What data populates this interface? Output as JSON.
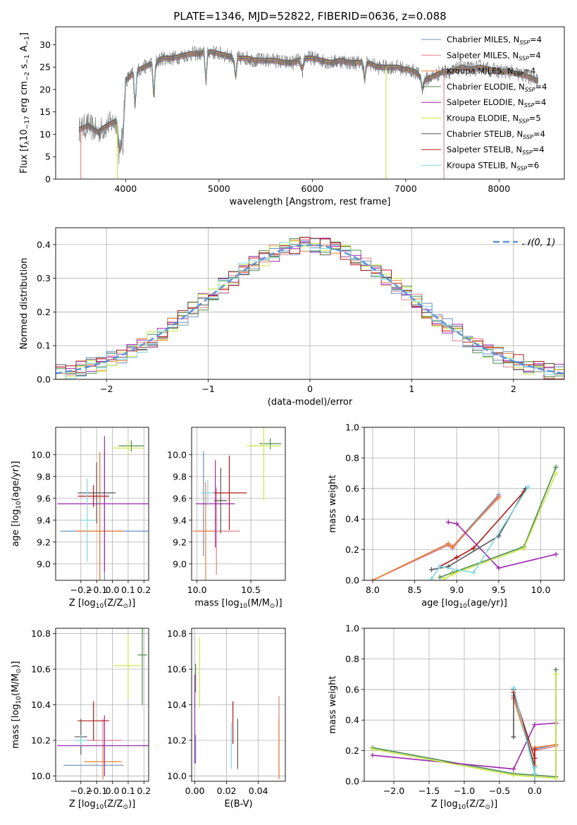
{
  "figure_title": "PLATE=1346, MJD=52822, FIBERID=0636, z=0.088",
  "colors": {
    "chabrier_miles": "#6c8ebf",
    "salpeter_miles": "#e07b8b",
    "kroupa_miles": "#e8833a",
    "chabrier_elodie": "#4e8a4e",
    "salpeter_elodie": "#9c27b0",
    "kroupa_elodie": "#c8e645",
    "chabrier_stelib": "#555555",
    "salpeter_stelib": "#b01818",
    "kroupa_stelib": "#7fd8e0",
    "data": "#707070",
    "normal": "#5b8fd6"
  },
  "legend_names": [
    "Chabrier MILES, N",
    "Salpeter MILES, N",
    "Kroupa MILES, N",
    "Chabrier ELODIE, N",
    "Salpeter ELODIE, N",
    "Kroupa ELODIE, N",
    "Chabrier STELIB, N",
    "Salpeter STELIB, N",
    "Kroupa STELIB, N"
  ],
  "legend_sub": "SSP",
  "legend_nssp": [
    "=4",
    "=4",
    "=4",
    "=4",
    "=4",
    "=5",
    "=4",
    "=4",
    "=6"
  ],
  "chart_data": [
    {
      "type": "line",
      "id": "spectrum",
      "xlabel": "wavelength [Angstrom, rest frame]",
      "ylabel_parts": [
        "Flux [f",
        "λ",
        "10",
        "−17",
        " erg cm",
        "−2",
        " s",
        "−1",
        " A",
        "−1",
        "]"
      ],
      "xlim": [
        3250,
        8700
      ],
      "ylim": [
        0,
        34
      ],
      "xticks": [
        4000,
        5000,
        6000,
        7000,
        8000
      ],
      "yticks": [
        0,
        5,
        10,
        15,
        20,
        25,
        30
      ],
      "continuum": [
        [
          3500,
          11
        ],
        [
          3600,
          12
        ],
        [
          3700,
          10.5
        ],
        [
          3800,
          12
        ],
        [
          3900,
          13
        ],
        [
          3950,
          9
        ],
        [
          4000,
          22
        ],
        [
          4100,
          24
        ],
        [
          4200,
          25
        ],
        [
          4300,
          26
        ],
        [
          4400,
          27
        ],
        [
          4500,
          27
        ],
        [
          4600,
          27.5
        ],
        [
          4700,
          28
        ],
        [
          4800,
          28
        ],
        [
          4900,
          28.5
        ],
        [
          5000,
          28
        ],
        [
          5100,
          27.5
        ],
        [
          5200,
          27
        ],
        [
          5300,
          27
        ],
        [
          5400,
          26.5
        ],
        [
          5500,
          26.5
        ],
        [
          5600,
          26.5
        ],
        [
          5700,
          26
        ],
        [
          5800,
          26
        ],
        [
          5900,
          27
        ],
        [
          6000,
          27
        ],
        [
          6100,
          26.5
        ],
        [
          6200,
          26
        ],
        [
          6300,
          26.5
        ],
        [
          6400,
          26
        ],
        [
          6500,
          26
        ],
        [
          6600,
          26
        ],
        [
          6700,
          25
        ],
        [
          6800,
          25
        ],
        [
          6900,
          25
        ],
        [
          7000,
          24.5
        ],
        [
          7100,
          24
        ],
        [
          7200,
          22
        ],
        [
          7300,
          23
        ],
        [
          7400,
          24
        ],
        [
          7500,
          24
        ],
        [
          7600,
          25
        ],
        [
          7700,
          24.5
        ],
        [
          7800,
          25
        ],
        [
          7900,
          24.5
        ],
        [
          8000,
          24
        ],
        [
          8100,
          24
        ],
        [
          8200,
          23.5
        ],
        [
          8300,
          23
        ],
        [
          8400,
          22
        ]
      ],
      "absorption_lines": [
        [
          3933,
          5
        ],
        [
          3968,
          7
        ],
        [
          4102,
          16
        ],
        [
          4304,
          18
        ],
        [
          4861,
          22
        ],
        [
          5175,
          22
        ],
        [
          5890,
          23
        ],
        [
          6563,
          22
        ],
        [
          7180,
          20
        ]
      ],
      "dropouts": [
        [
          3520,
          "salpeter_miles"
        ],
        [
          3910,
          "kroupa_elodie"
        ],
        [
          6790,
          "kroupa_elodie"
        ],
        [
          7410,
          "salpeter_miles"
        ]
      ]
    },
    {
      "type": "histogram",
      "id": "residuals",
      "xlabel": "(data-model)/error",
      "ylabel": "Normed distribution",
      "xlim": [
        -2.5,
        2.5
      ],
      "ylim": [
        0,
        0.45
      ],
      "xticks": [
        -2,
        -1,
        0,
        1,
        2
      ],
      "xtick_labels": [
        "−2",
        "−1",
        "0",
        "1",
        "2"
      ],
      "yticks": [
        0.0,
        0.1,
        0.2,
        0.3,
        0.4
      ],
      "ytick_labels": [
        "0.0",
        "0.1",
        "0.2",
        "0.3",
        "0.4"
      ],
      "grid": true,
      "bin_width": 0.1,
      "legend": "𝒩(0, 1)",
      "legend_placement": "top-right",
      "reference": {
        "mean": 0,
        "sigma": 1
      }
    },
    {
      "type": "scatter",
      "id": "age_vs_Z",
      "xlabel_parts": [
        "Z [log",
        "10",
        "(Z/Z",
        "⊙",
        ")]"
      ],
      "ylabel_parts": [
        "age  [log",
        "10",
        "(age/yr)]"
      ],
      "xlim": [
        -0.36,
        0.23
      ],
      "ylim": [
        8.85,
        10.25
      ],
      "xticks": [
        -0.2,
        -0.1,
        0.0,
        0.1,
        0.2
      ],
      "xtick_labels": [
        "−0.2",
        "−0.1",
        "0.0",
        "0.1",
        "0.2"
      ],
      "yticks": [
        9.0,
        9.2,
        9.4,
        9.6,
        9.8,
        10.0
      ],
      "ytick_labels": [
        "9.0",
        "9.2",
        "9.4",
        "9.6",
        "9.8",
        "10.0"
      ],
      "grid": true,
      "points": [
        {
          "s": "chabrier_miles",
          "x": -0.05,
          "y": 9.3,
          "xerr": 0.28,
          "yerr": 0.75
        },
        {
          "s": "salpeter_miles",
          "x": -0.08,
          "y": 9.3,
          "xerr": 0.15,
          "yerr": 0.72
        },
        {
          "s": "kroupa_miles",
          "x": -0.08,
          "y": 9.3,
          "xerr": 0.15,
          "yerr": 0.72
        },
        {
          "s": "chabrier_elodie",
          "x": 0.12,
          "y": 10.08,
          "xerr": 0.08,
          "yerr": 0.05
        },
        {
          "s": "salpeter_elodie",
          "x": -0.05,
          "y": 9.55,
          "xerr": 0.3,
          "yerr": 0.62
        },
        {
          "s": "kroupa_elodie",
          "x": 0.1,
          "y": 10.06,
          "xerr": 0.1,
          "yerr": 0.06
        },
        {
          "s": "chabrier_stelib",
          "x": -0.1,
          "y": 9.65,
          "xerr": 0.12,
          "yerr": 0.28
        },
        {
          "s": "salpeter_stelib",
          "x": -0.12,
          "y": 9.62,
          "xerr": 0.1,
          "yerr": 0.1
        },
        {
          "s": "kroupa_stelib",
          "x": -0.16,
          "y": 9.4,
          "xerr": 0.05,
          "yerr": 0.38
        }
      ]
    },
    {
      "type": "scatter",
      "id": "age_vs_mass",
      "xlabel_parts": [
        "mass [log",
        "10",
        "(M/M",
        "⊙",
        ")]"
      ],
      "xlim": [
        9.95,
        10.82
      ],
      "ylim": [
        8.85,
        10.25
      ],
      "xticks": [
        10.0,
        10.5
      ],
      "xtick_labels": [
        "10.0",
        "10.5"
      ],
      "yticks": [
        9.0,
        9.2,
        9.4,
        9.6,
        9.8,
        10.0
      ],
      "ytick_labels": [
        "9.0",
        "9.2",
        "9.4",
        "9.6",
        "9.8",
        "10.0"
      ],
      "grid": true,
      "points": [
        {
          "s": "chabrier_miles",
          "x": 10.06,
          "y": 9.55,
          "xerr": 0.03,
          "yerr": 0.48
        },
        {
          "s": "salpeter_miles",
          "x": 10.18,
          "y": 9.3,
          "xerr": 0.22,
          "yerr": 0.4
        },
        {
          "s": "kroupa_miles",
          "x": 10.08,
          "y": 9.3,
          "xerr": 0.1,
          "yerr": 0.45
        },
        {
          "s": "chabrier_elodie",
          "x": 10.68,
          "y": 10.1,
          "xerr": 0.1,
          "yerr": 0.05
        },
        {
          "s": "salpeter_elodie",
          "x": 10.17,
          "y": 9.55,
          "xerr": 0.18,
          "yerr": 0.4
        },
        {
          "s": "kroupa_elodie",
          "x": 10.62,
          "y": 10.08,
          "xerr": 0.16,
          "yerr": 0.5
        },
        {
          "s": "chabrier_stelib",
          "x": 10.22,
          "y": 9.58,
          "xerr": 0.06,
          "yerr": 0.3
        },
        {
          "s": "salpeter_stelib",
          "x": 10.3,
          "y": 9.65,
          "xerr": 0.16,
          "yerr": 0.34
        },
        {
          "s": "kroupa_stelib",
          "x": 10.1,
          "y": 9.65,
          "xerr": 0.06,
          "yerr": 0.12
        }
      ]
    },
    {
      "type": "line",
      "id": "mass_weight_vs_age",
      "xlabel_parts": [
        "age  [log",
        "10",
        "(age/yr)]"
      ],
      "ylabel": "mass weight",
      "xlim": [
        7.9,
        10.28
      ],
      "ylim": [
        0,
        1.0
      ],
      "xticks": [
        8.0,
        8.5,
        9.0,
        9.5,
        10.0
      ],
      "xtick_labels": [
        "8.0",
        "8.5",
        "9.0",
        "9.5",
        "10.0"
      ],
      "yticks": [
        0.0,
        0.2,
        0.4,
        0.6,
        0.8,
        1.0
      ],
      "ytick_labels": [
        "0.0",
        "0.2",
        "0.4",
        "0.6",
        "0.8",
        "1.0"
      ],
      "grid": true,
      "series": [
        {
          "s": "chabrier_miles",
          "x": [
            8.0,
            8.9,
            8.95,
            9.5
          ],
          "y": [
            0.0,
            0.24,
            0.22,
            0.56
          ]
        },
        {
          "s": "salpeter_miles",
          "x": [
            8.0,
            8.9,
            8.95,
            9.5
          ],
          "y": [
            0.0,
            0.23,
            0.21,
            0.55
          ]
        },
        {
          "s": "kroupa_miles",
          "x": [
            8.0,
            8.9,
            8.95,
            9.5
          ],
          "y": [
            0.0,
            0.24,
            0.22,
            0.54
          ]
        },
        {
          "s": "chabrier_elodie",
          "x": [
            8.8,
            8.95,
            9.8,
            10.18
          ],
          "y": [
            0.02,
            0.05,
            0.22,
            0.74
          ]
        },
        {
          "s": "salpeter_elodie",
          "x": [
            8.9,
            9.0,
            9.5,
            10.18
          ],
          "y": [
            0.38,
            0.37,
            0.08,
            0.17
          ]
        },
        {
          "s": "kroupa_elodie",
          "x": [
            8.85,
            8.95,
            9.8,
            10.18
          ],
          "y": [
            0.01,
            0.04,
            0.21,
            0.7
          ]
        },
        {
          "s": "chabrier_stelib",
          "x": [
            8.7,
            8.9,
            9.5,
            9.82
          ],
          "y": [
            0.07,
            0.09,
            0.29,
            0.6
          ]
        },
        {
          "s": "salpeter_stelib",
          "x": [
            8.8,
            9.0,
            9.2,
            9.8
          ],
          "y": [
            0.09,
            0.15,
            0.21,
            0.58
          ]
        },
        {
          "s": "kroupa_stelib",
          "x": [
            8.7,
            8.8,
            9.2,
            9.85
          ],
          "y": [
            0.01,
            0.09,
            0.05,
            0.61
          ]
        }
      ]
    },
    {
      "type": "scatter",
      "id": "mass_vs_Z",
      "xlabel_parts": [
        "Z [log",
        "10",
        "(Z/Z",
        "⊙",
        ")]"
      ],
      "ylabel_parts": [
        "mass [log",
        "10",
        "(M/M",
        "⊙",
        ")]"
      ],
      "xlim": [
        -0.36,
        0.23
      ],
      "ylim": [
        9.97,
        10.83
      ],
      "xticks": [
        -0.2,
        -0.1,
        0.0,
        0.1,
        0.2
      ],
      "xtick_labels": [
        "−0.2",
        "−0.1",
        "0.0",
        "0.1",
        "0.2"
      ],
      "yticks": [
        10.0,
        10.2,
        10.4,
        10.6,
        10.8
      ],
      "ytick_labels": [
        "10.0",
        "10.2",
        "10.4",
        "10.6",
        "10.8"
      ],
      "grid": true,
      "points": [
        {
          "s": "chabrier_miles",
          "x": -0.12,
          "y": 10.06,
          "xerr": 0.19,
          "yerr": 0.0
        },
        {
          "s": "salpeter_miles",
          "x": -0.06,
          "y": 10.2,
          "xerr": 0.12,
          "yerr": 0.12
        },
        {
          "s": "kroupa_miles",
          "x": -0.06,
          "y": 10.08,
          "xerr": 0.12,
          "yerr": 0.1
        },
        {
          "s": "chabrier_elodie",
          "x": 0.19,
          "y": 10.68,
          "xerr": 0.03,
          "yerr": 0.28
        },
        {
          "s": "salpeter_elodie",
          "x": -0.05,
          "y": 10.17,
          "xerr": 0.3,
          "yerr": 0.17
        },
        {
          "s": "kroupa_elodie",
          "x": 0.1,
          "y": 10.62,
          "xerr": 0.09,
          "yerr": 0.18
        },
        {
          "s": "chabrier_stelib",
          "x": -0.2,
          "y": 10.22,
          "xerr": 0.04,
          "yerr": 0.1
        },
        {
          "s": "salpeter_stelib",
          "x": -0.12,
          "y": 10.31,
          "xerr": 0.1,
          "yerr": 0.11
        },
        {
          "s": "kroupa_stelib",
          "x": -0.2,
          "y": 10.2,
          "xerr": 0.04,
          "yerr": 0.03
        }
      ]
    },
    {
      "type": "scatter",
      "id": "mass_vs_ebv",
      "xlabel": "E(B-V)",
      "xlim": [
        -0.002,
        0.057
      ],
      "ylim": [
        9.97,
        10.83
      ],
      "xticks": [
        0.0,
        0.02,
        0.04
      ],
      "xtick_labels": [
        "0.00",
        "0.02",
        "0.04"
      ],
      "yticks": [
        10.0,
        10.2,
        10.4,
        10.6,
        10.8
      ],
      "ytick_labels": [
        "10.0",
        "10.2",
        "10.4",
        "10.6",
        "10.8"
      ],
      "grid": true,
      "points": [
        {
          "s": "chabrier_miles",
          "x": 0.0005,
          "y": 10.15,
          "xerr": 0,
          "yerr": 0.08
        },
        {
          "s": "salpeter_miles",
          "x": 0.053,
          "y": 10.22,
          "xerr": 0,
          "yerr": 0.23
        },
        {
          "s": "kroupa_miles",
          "x": 0.053,
          "y": 10.15,
          "xerr": 0,
          "yerr": 0.17
        },
        {
          "s": "chabrier_elodie",
          "x": 0.0005,
          "y": 10.55,
          "xerr": 0,
          "yerr": 0.08
        },
        {
          "s": "salpeter_elodie",
          "x": 0.0,
          "y": 10.32,
          "xerr": 0,
          "yerr": 0.25
        },
        {
          "s": "kroupa_elodie",
          "x": 0.003,
          "y": 10.58,
          "xerr": 0,
          "yerr": 0.2
        },
        {
          "s": "chabrier_stelib",
          "x": 0.027,
          "y": 10.18,
          "xerr": 0,
          "yerr": 0.14
        },
        {
          "s": "salpeter_stelib",
          "x": 0.024,
          "y": 10.3,
          "xerr": 0,
          "yerr": 0.12
        },
        {
          "s": "kroupa_stelib",
          "x": 0.023,
          "y": 10.17,
          "xerr": 0,
          "yerr": 0.13
        }
      ]
    },
    {
      "type": "line",
      "id": "mass_weight_vs_Z",
      "xlabel_parts": [
        "Z [log",
        "10",
        "(Z/Z",
        "⊙",
        ")]"
      ],
      "ylabel": "mass weight",
      "xlim": [
        -2.42,
        0.42
      ],
      "ylim": [
        0,
        1.0
      ],
      "xticks": [
        -2.0,
        -1.5,
        -1.0,
        -0.5,
        0.0
      ],
      "xtick_labels": [
        "−2.0",
        "−1.5",
        "−1.0",
        "−0.5",
        "0.0"
      ],
      "yticks": [
        0.0,
        0.2,
        0.4,
        0.6,
        0.8,
        1.0
      ],
      "ytick_labels": [
        "0.0",
        "0.2",
        "0.4",
        "0.6",
        "0.8",
        "1.0"
      ],
      "grid": true,
      "series": [
        {
          "s": "chabrier_miles",
          "x": [
            -0.3,
            0.0,
            0.0,
            0.3
          ],
          "y": [
            0.56,
            0.1,
            0.21,
            0.24
          ]
        },
        {
          "s": "salpeter_miles",
          "x": [
            -0.3,
            0.0,
            0.0,
            0.3
          ],
          "y": [
            0.55,
            0.1,
            0.2,
            0.23
          ]
        },
        {
          "s": "kroupa_miles",
          "x": [
            -0.3,
            0.0,
            0.0,
            0.3
          ],
          "y": [
            0.54,
            0.1,
            0.22,
            0.24
          ]
        },
        {
          "s": "chabrier_elodie",
          "x": [
            -2.3,
            -0.3,
            0.3,
            0.3
          ],
          "y": [
            0.22,
            0.05,
            0.03,
            0.73
          ]
        },
        {
          "s": "salpeter_elodie",
          "x": [
            -2.3,
            -0.3,
            0.0,
            0.3
          ],
          "y": [
            0.17,
            0.08,
            0.37,
            0.38
          ]
        },
        {
          "s": "kroupa_elodie",
          "x": [
            -2.3,
            -0.3,
            0.3,
            0.3
          ],
          "y": [
            0.21,
            0.04,
            0.02,
            0.7
          ]
        },
        {
          "s": "chabrier_stelib",
          "x": [
            -0.3,
            -0.3,
            0.0,
            0.0
          ],
          "y": [
            0.29,
            0.6,
            0.09,
            0.05
          ]
        },
        {
          "s": "salpeter_stelib",
          "x": [
            -0.3,
            0.0,
            0.0,
            0.0
          ],
          "y": [
            0.58,
            0.15,
            0.21,
            0.0
          ]
        },
        {
          "s": "kroupa_stelib",
          "x": [
            -0.3,
            0.0,
            0.0,
            0.0
          ],
          "y": [
            0.61,
            0.05,
            0.09,
            0.0
          ]
        }
      ]
    }
  ]
}
